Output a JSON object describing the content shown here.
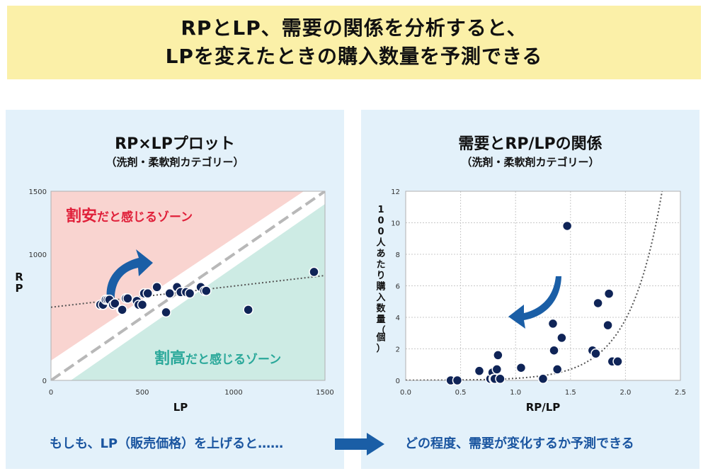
{
  "banner": {
    "line1": "RPとLP、需要の関係を分析すると、",
    "line2": "LPを変えたときの購入数量を予測できる"
  },
  "left_panel": {
    "title": "RP×LPプロット",
    "subtitle": "（洗剤・柔軟剤カテゴリー）",
    "zone_cheap_kanji": "割安",
    "zone_cheap_rest": "だと感じるゾーン",
    "zone_expensive_kanji": "割高",
    "zone_expensive_rest": "だと感じるゾーン"
  },
  "right_panel": {
    "title": "需要とRP/LPの関係",
    "subtitle": "（洗剤・柔軟剤カテゴリー）"
  },
  "bottom": {
    "left_caption": "もしも、LP（販売価格）を上げると……",
    "right_caption": "どの程度、需要が変化するか予測できる"
  },
  "colors": {
    "point": "#0f2457",
    "cheap_zone": "#f9d4d0",
    "expensive_zone": "#cdebe4",
    "cheap_text": "#e0203a",
    "expensive_text": "#2aa89a",
    "arrow": "#1a5ea6"
  },
  "chart_data": [
    {
      "type": "scatter",
      "title": "RP×LPプロット",
      "xlabel": "LP",
      "ylabel": "RP",
      "xlim": [
        0,
        1500
      ],
      "ylim": [
        0,
        1500
      ],
      "xticks": [
        "0",
        "500",
        "1000",
        "1500"
      ],
      "yticks": [
        "0",
        "1000",
        "1500"
      ],
      "grid": false,
      "x": [
        270,
        285,
        300,
        310,
        320,
        340,
        350,
        385,
        390,
        410,
        420,
        470,
        480,
        500,
        510,
        530,
        580,
        630,
        650,
        690,
        710,
        740,
        760,
        820,
        840,
        850,
        1080,
        1440
      ],
      "y": [
        600,
        600,
        640,
        640,
        640,
        600,
        610,
        560,
        560,
        650,
        650,
        630,
        600,
        600,
        690,
        690,
        740,
        540,
        690,
        740,
        700,
        700,
        690,
        740,
        710,
        710,
        560,
        860
      ],
      "trendline": {
        "type": "linear",
        "x": [
          0,
          1550
        ],
        "y": [
          580,
          840
        ]
      },
      "diagonal": {
        "x": [
          0,
          1550
        ],
        "y": [
          0,
          1550
        ]
      }
    },
    {
      "type": "scatter",
      "title": "需要とRP/LPの関係",
      "xlabel": "RP/LP",
      "ylabel": "100人あたり購入数量（個）",
      "xlim": [
        0,
        2.5
      ],
      "ylim": [
        0,
        12
      ],
      "xticks": [
        "0.0",
        "0.5",
        "1.0",
        "1.5",
        "2.0",
        "2.5"
      ],
      "yticks": [
        "0",
        "2",
        "4",
        "6",
        "8",
        "10",
        "12"
      ],
      "grid": true,
      "x": [
        0.41,
        0.47,
        0.67,
        0.77,
        0.79,
        0.8,
        0.81,
        0.83,
        0.84,
        0.86,
        1.05,
        1.25,
        1.34,
        1.35,
        1.38,
        1.42,
        1.47,
        1.7,
        1.73,
        1.75,
        1.84,
        1.85,
        1.88,
        1.93
      ],
      "y": [
        0,
        0,
        0.6,
        0.1,
        0.5,
        0.1,
        0.1,
        0.7,
        1.6,
        0.1,
        0.8,
        0.1,
        3.6,
        1.9,
        0.7,
        2.7,
        9.8,
        1.9,
        1.7,
        4.9,
        3.5,
        5.5,
        1.2,
        1.2
      ],
      "curve": {
        "type": "exponential",
        "a": 0.0043,
        "b": 3.4
      }
    }
  ]
}
